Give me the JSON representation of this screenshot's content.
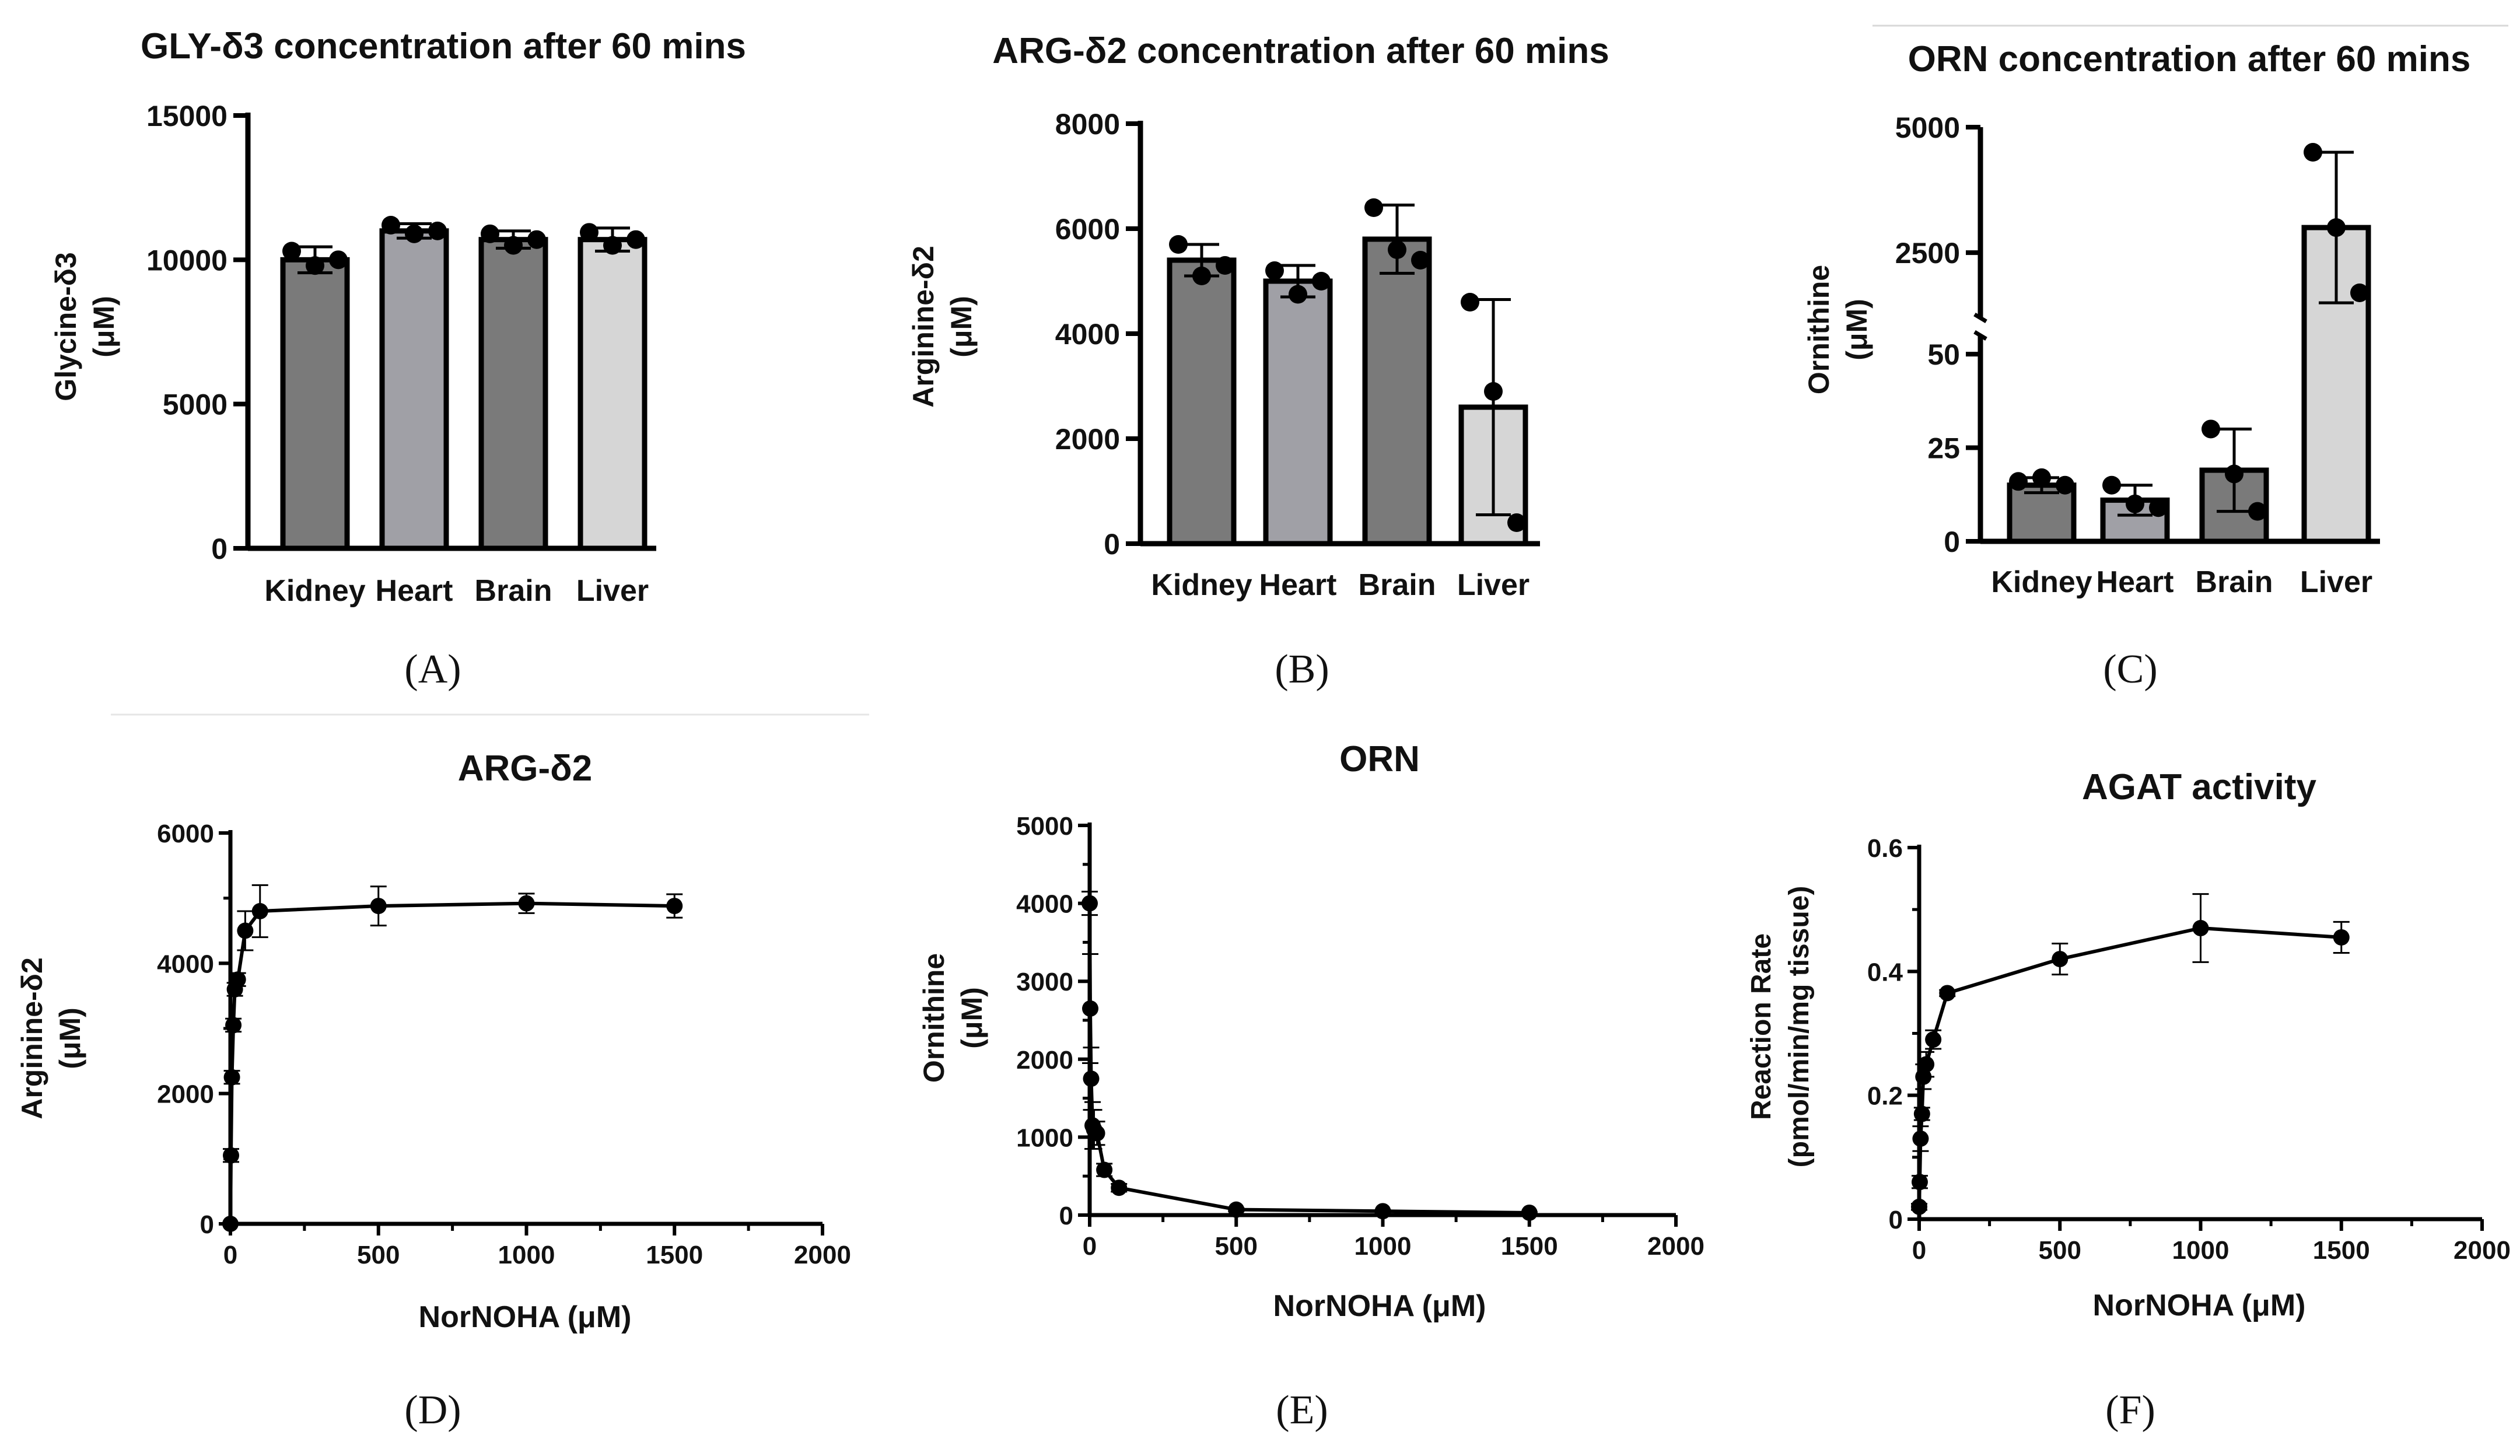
{
  "colors": {
    "Kidney": "#7a7a7a",
    "Heart": "#a0a0a6",
    "Brain": "#7a7a7a",
    "Liver": "#d6d6d6",
    "axis": "#000000",
    "point": "#000000"
  },
  "chart_data": [
    {
      "id": "A",
      "type": "bar",
      "title": "GLY-δ3 concentration after 60 mins",
      "ylabel": [
        "Glycine-δ3",
        "(μM)"
      ],
      "xlabel": "",
      "categories": [
        "Kidney",
        "Heart",
        "Brain",
        "Liver"
      ],
      "values": [
        10000,
        11000,
        10700,
        10700
      ],
      "errors": [
        450,
        250,
        300,
        400
      ],
      "points": [
        [
          10300,
          9800,
          10000
        ],
        [
          11200,
          10900,
          11000
        ],
        [
          10900,
          10500,
          10700
        ],
        [
          10950,
          10500,
          10700
        ]
      ],
      "ylim": [
        0,
        15000
      ],
      "yticks": [
        0,
        5000,
        10000,
        15000
      ],
      "panel_label": "(A)"
    },
    {
      "id": "B",
      "type": "bar",
      "title": "ARG-δ2 concentration after 60 mins",
      "ylabel": [
        "Arginine-δ2",
        "(μM)"
      ],
      "xlabel": "",
      "categories": [
        "Kidney",
        "Heart",
        "Brain",
        "Liver"
      ],
      "values": [
        5400,
        5000,
        5800,
        2600
      ],
      "errors": [
        300,
        300,
        650,
        2050
      ],
      "points": [
        [
          5700,
          5100,
          5300
        ],
        [
          5200,
          4750,
          5000
        ],
        [
          6400,
          5600,
          5400
        ],
        [
          4600,
          2900,
          400
        ]
      ],
      "ylim": [
        0,
        8000
      ],
      "yticks": [
        0,
        2000,
        4000,
        6000,
        8000
      ],
      "panel_label": "(B)"
    },
    {
      "id": "C",
      "type": "bar",
      "title": "ORN concentration after 60 mins",
      "ylabel": [
        "Ornithine",
        "(μM)"
      ],
      "xlabel": "",
      "categories": [
        "Kidney",
        "Heart",
        "Brain",
        "Liver"
      ],
      "values": [
        15,
        11,
        19,
        3000
      ],
      "errors": [
        2,
        4,
        11,
        1500
      ],
      "points": [
        [
          16,
          17,
          15
        ],
        [
          15,
          10,
          9
        ],
        [
          30,
          18,
          8
        ],
        [
          4500,
          3000,
          1700
        ]
      ],
      "broken_axis": {
        "lower": [
          0,
          55
        ],
        "upper": [
          1200,
          5000
        ]
      },
      "yticks": [
        0,
        25,
        50,
        2500,
        5000
      ],
      "panel_label": "(C)"
    },
    {
      "id": "D",
      "type": "line",
      "title": "ARG-δ2",
      "xlabel": "NorNOHA (μM)",
      "ylabel": [
        "Arginine-δ2",
        "(μM)"
      ],
      "x": [
        0,
        2,
        5,
        10,
        15,
        25,
        50,
        100,
        500,
        1000,
        1500
      ],
      "y": [
        0,
        1050,
        2250,
        3050,
        3600,
        3750,
        4500,
        4800,
        4880,
        4920,
        4880
      ],
      "errors": [
        0,
        100,
        100,
        100,
        100,
        100,
        300,
        400,
        300,
        150,
        180
      ],
      "xlim": [
        0,
        2000
      ],
      "ylim": [
        0,
        6000
      ],
      "xticks": [
        0,
        500,
        1000,
        1500,
        2000
      ],
      "yticks": [
        0,
        2000,
        4000,
        6000
      ],
      "panel_label": "(D)"
    },
    {
      "id": "E",
      "type": "line",
      "title": "ORN",
      "xlabel": "NorNOHA (μM)",
      "ylabel": [
        "Ornithine",
        "(μM)"
      ],
      "x": [
        0,
        2,
        5,
        10,
        15,
        25,
        50,
        100,
        500,
        1000,
        1500
      ],
      "y": [
        4000,
        2650,
        1750,
        1150,
        1100,
        1050,
        580,
        350,
        70,
        50,
        30
      ],
      "errors": [
        150,
        700,
        400,
        300,
        250,
        150,
        80,
        50,
        20,
        15,
        10
      ],
      "xlim": [
        0,
        2000
      ],
      "ylim": [
        0,
        5000
      ],
      "xticks": [
        0,
        500,
        1000,
        1500,
        2000
      ],
      "yticks": [
        0,
        1000,
        2000,
        3000,
        4000,
        5000
      ],
      "panel_label": "(E)"
    },
    {
      "id": "F",
      "type": "line",
      "title": "AGAT activity",
      "xlabel": "NorNOHA (μM)",
      "ylabel": [
        "Reaction Rate",
        "(pmol/min/mg tissue)"
      ],
      "x": [
        0,
        2,
        5,
        10,
        15,
        25,
        50,
        100,
        500,
        1000,
        1500
      ],
      "y": [
        0.02,
        0.06,
        0.13,
        0.17,
        0.23,
        0.25,
        0.29,
        0.365,
        0.42,
        0.47,
        0.455
      ],
      "errors": [
        0.005,
        0.01,
        0.02,
        0.01,
        0.02,
        0.02,
        0.015,
        0.005,
        0.025,
        0.055,
        0.025
      ],
      "xlim": [
        0,
        2000
      ],
      "ylim": [
        0,
        0.6
      ],
      "xticks": [
        0,
        500,
        1000,
        1500,
        2000
      ],
      "yticks": [
        0.0,
        0.2,
        0.4,
        0.6
      ],
      "panel_label": "(F)"
    }
  ]
}
